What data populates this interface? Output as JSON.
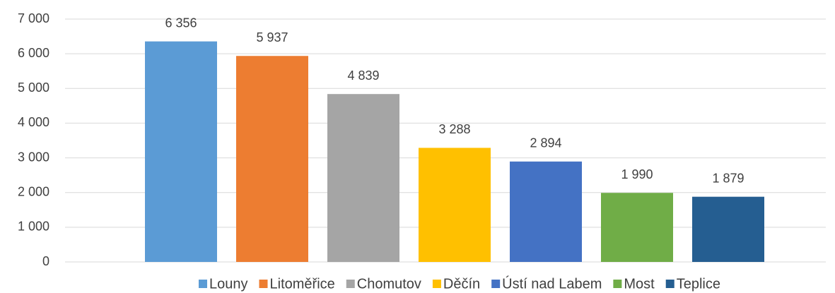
{
  "chart_data": {
    "type": "bar",
    "series": [
      {
        "name": "Louny",
        "color": "#5b9bd5",
        "values": [
          6356
        ],
        "value_labels": [
          "6 356"
        ]
      },
      {
        "name": "Litoměřice",
        "color": "#ed7d31",
        "values": [
          5937
        ],
        "value_labels": [
          "5 937"
        ]
      },
      {
        "name": "Chomutov",
        "color": "#a5a5a5",
        "values": [
          4839
        ],
        "value_labels": [
          "4 839"
        ]
      },
      {
        "name": "Děčín",
        "color": "#ffc000",
        "values": [
          3288
        ],
        "value_labels": [
          "3 288"
        ]
      },
      {
        "name": "Ústí nad Labem",
        "color": "#4472c4",
        "values": [
          2894
        ],
        "value_labels": [
          "2 894"
        ]
      },
      {
        "name": "Most",
        "color": "#70ad47",
        "values": [
          1990
        ],
        "value_labels": [
          "1 990"
        ]
      },
      {
        "name": "Teplice",
        "color": "#255e91",
        "values": [
          1879
        ],
        "value_labels": [
          "1 879"
        ]
      }
    ],
    "ylim": [
      0,
      7000
    ],
    "yticks": [
      0,
      {
        "value": 1000,
        "label": "1 000"
      },
      {
        "value": 2000,
        "label": "2 000"
      },
      {
        "value": 3000,
        "label": "3 000"
      },
      {
        "value": 4000,
        "label": "4 000"
      },
      {
        "value": 5000,
        "label": "5 000"
      },
      {
        "value": 6000,
        "label": "6 000"
      },
      {
        "value": 7000,
        "label": "7 000"
      }
    ],
    "grid": true,
    "legend": "bottom"
  }
}
